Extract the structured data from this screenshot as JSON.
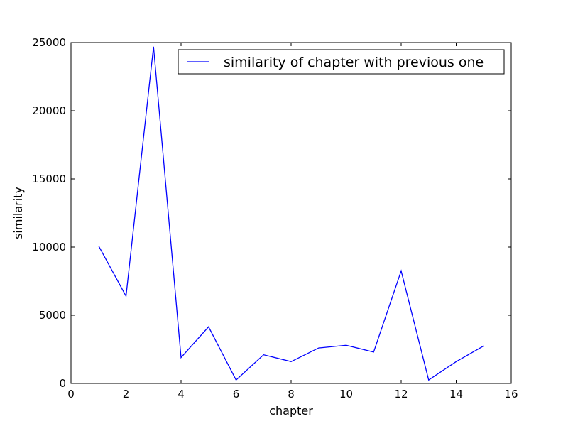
{
  "chart_data": {
    "type": "line",
    "title": "",
    "xlabel": "chapter",
    "ylabel": "similarity",
    "xlim": [
      0,
      16
    ],
    "ylim": [
      0,
      25000
    ],
    "xticks": [
      0,
      2,
      4,
      6,
      8,
      10,
      12,
      14,
      16
    ],
    "yticks": [
      0,
      5000,
      10000,
      15000,
      20000,
      25000
    ],
    "grid": false,
    "legend_position": "top-right",
    "series": [
      {
        "name": "similarity of chapter with previous one",
        "color": "#0000ff",
        "x": [
          1,
          2,
          3,
          4,
          5,
          6,
          7,
          8,
          9,
          10,
          11,
          12,
          13,
          14,
          15
        ],
        "y": [
          10100,
          6400,
          24700,
          1900,
          4150,
          250,
          2100,
          1600,
          2600,
          2800,
          2300,
          8250,
          250,
          1600,
          2750
        ]
      }
    ]
  }
}
